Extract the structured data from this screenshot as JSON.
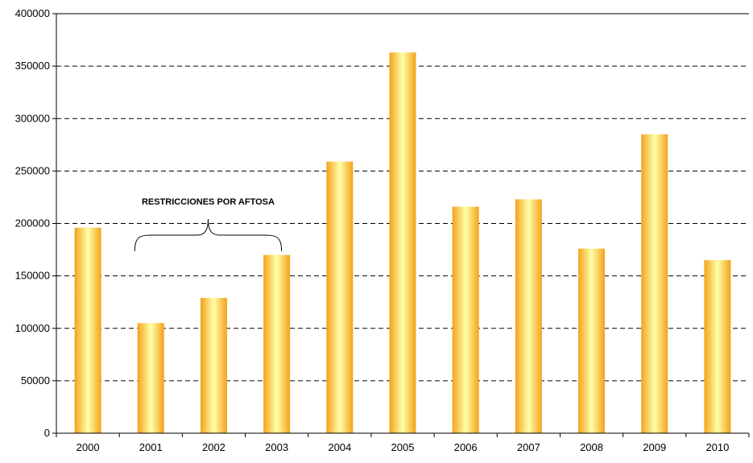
{
  "chart_data": {
    "type": "bar",
    "categories": [
      "2000",
      "2001",
      "2002",
      "2003",
      "2004",
      "2005",
      "2006",
      "2007",
      "2008",
      "2009",
      "2010"
    ],
    "values": [
      196000,
      105000,
      129000,
      170000,
      259000,
      363000,
      216000,
      223000,
      176000,
      285000,
      165000
    ],
    "title": "",
    "xlabel": "",
    "ylabel": "",
    "ylim": [
      0,
      400000
    ],
    "yticks": [
      "0",
      "50000",
      "100000",
      "150000",
      "200000",
      "250000",
      "300000",
      "350000",
      "400000"
    ],
    "grid": "dashed horizontal",
    "legend": "none",
    "annotation": {
      "text": "RESTRICCIONES POR AFTOSA",
      "span": [
        "2001",
        "2003"
      ]
    },
    "colors": {
      "bar_edge": "#f4a21c",
      "bar_center": "#ffffa8",
      "grid": "#000000",
      "axis": "#000000"
    }
  }
}
